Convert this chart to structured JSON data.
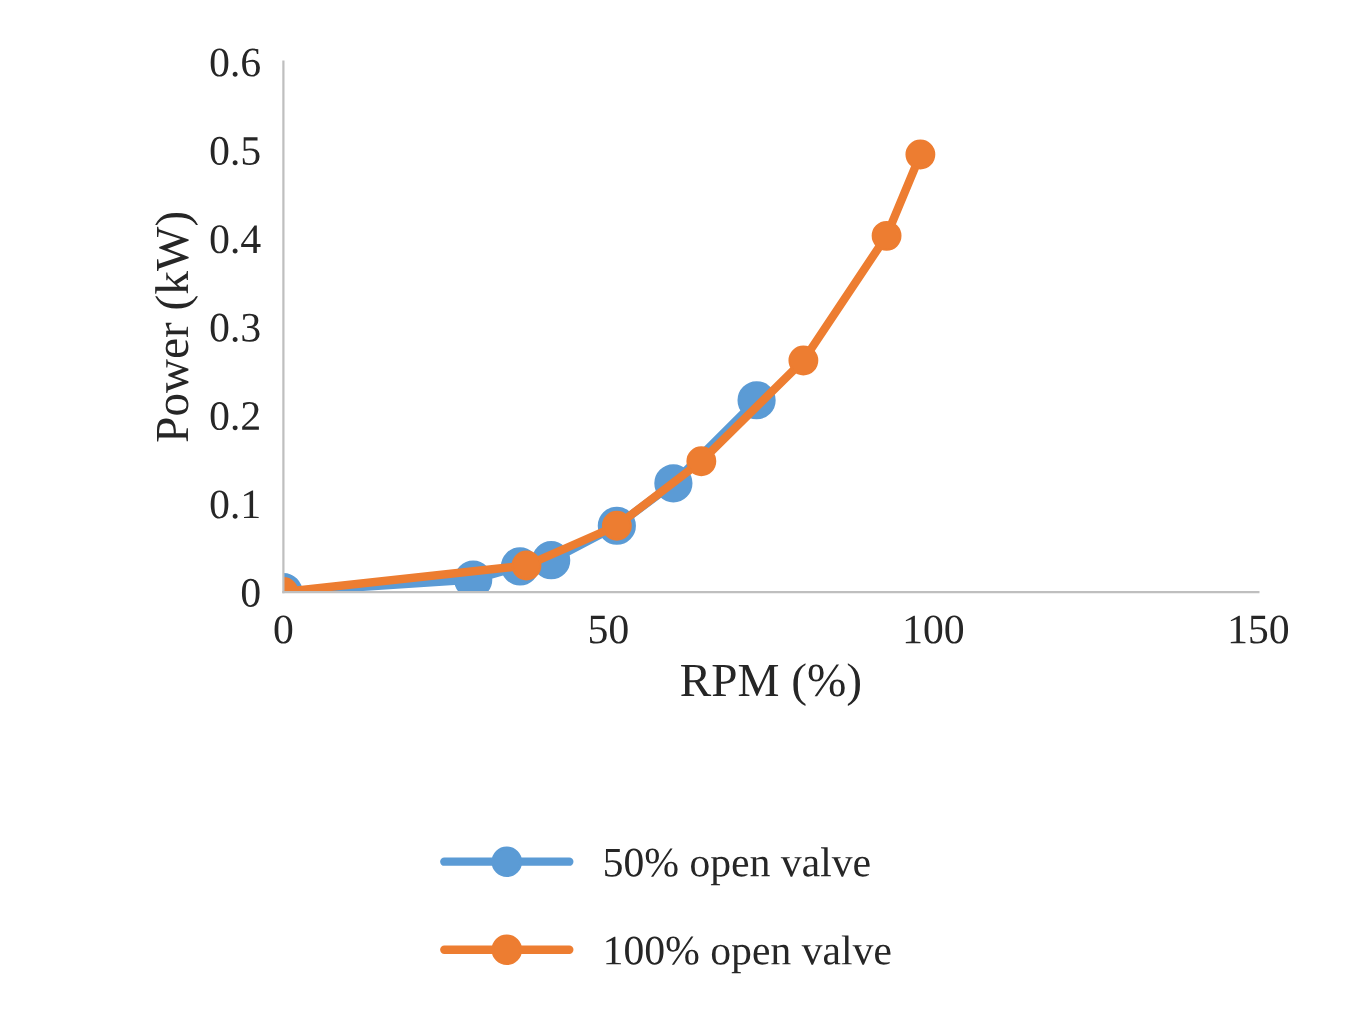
{
  "chart_data": {
    "type": "line",
    "xlabel": "RPM (%)",
    "ylabel": "Power (kW)",
    "xlim": [
      0,
      150
    ],
    "xticks": [
      0,
      50,
      100,
      150
    ],
    "ylim": [
      0,
      0.6
    ],
    "yticks": [
      {
        "value": 0,
        "label": "0"
      },
      0.1,
      0.2,
      0.3,
      0.4,
      0.5,
      0.6
    ],
    "marker": "circle",
    "line_style": "solid",
    "grid": false,
    "legend": "bottom",
    "series": [
      {
        "name": "50% open valve",
        "color": "#5b9bd5",
        "x": [
          0,
          29.2,
          36.4,
          41.2,
          51.3,
          60.0,
          72.8
        ],
        "values": [
          0,
          0.014,
          0.029,
          0.036,
          0.075,
          0.123,
          0.217
        ]
      },
      {
        "name": "100% open valve",
        "color": "#ed7d31",
        "x": [
          0,
          37.4,
          51.3,
          64.3,
          80.0,
          92.8,
          98.0
        ],
        "values": [
          0,
          0.03,
          0.075,
          0.148,
          0.262,
          0.403,
          0.495
        ]
      }
    ]
  }
}
